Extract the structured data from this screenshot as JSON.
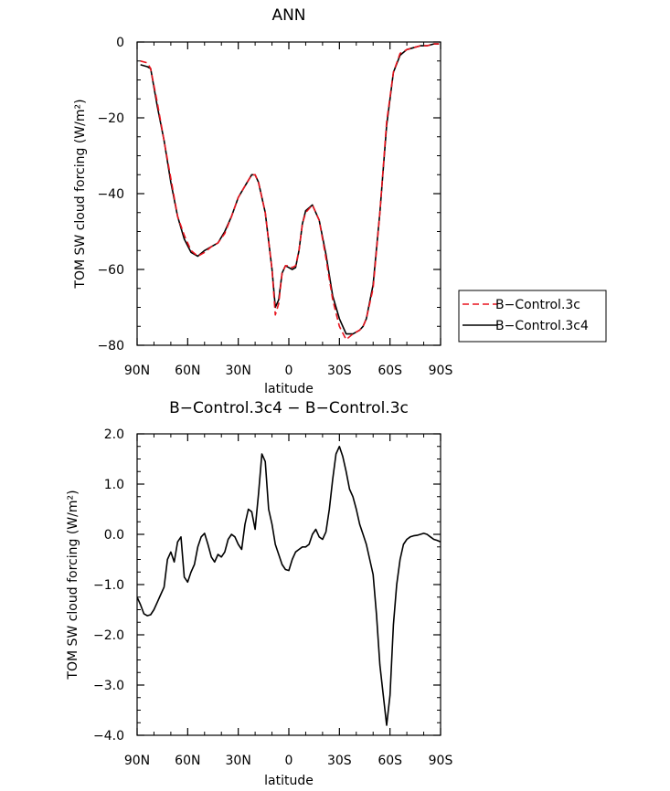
{
  "chart_data": [
    {
      "type": "line",
      "title": "ANN",
      "xlabel": "latitude",
      "ylabel": "TOM SW cloud forcing (W/m²)",
      "xlim": [
        90,
        -90
      ],
      "ylim": [
        -80,
        0
      ],
      "x_ticks": [
        90,
        60,
        30,
        0,
        -30,
        -60,
        -90
      ],
      "x_tick_labels": [
        "90N",
        "60N",
        "30N",
        "0",
        "30S",
        "60S",
        "90S"
      ],
      "y_ticks": [
        0,
        -20,
        -40,
        -60,
        -80
      ],
      "y_tick_labels": [
        "0",
        "−20",
        "−40",
        "−60",
        "−80"
      ],
      "legend_position": "right",
      "series": [
        {
          "name": "B−Control.3c",
          "color": "#e8141e",
          "dash": "dashed",
          "x": [
            88,
            84,
            82,
            78,
            74,
            70,
            66,
            62,
            58,
            54,
            50,
            46,
            42,
            38,
            34,
            30,
            26,
            22,
            20,
            18,
            14,
            10,
            8,
            6,
            4,
            2,
            0,
            -2,
            -4,
            -6,
            -8,
            -10,
            -14,
            -18,
            -22,
            -26,
            -30,
            -34,
            -38,
            -42,
            -44,
            -46,
            -50,
            -54,
            -58,
            -62,
            -66,
            -70,
            -74,
            -78,
            -82,
            -86,
            -89
          ],
          "y": [
            -5,
            -5.5,
            -7,
            -16,
            -26,
            -36,
            -46,
            -51,
            -55,
            -56.5,
            -55.5,
            -54,
            -53,
            -50.5,
            -46,
            -41,
            -38,
            -35,
            -35,
            -37,
            -45,
            -60,
            -72,
            -69,
            -61,
            -59,
            -59,
            -59.5,
            -59,
            -55,
            -48,
            -45,
            -43,
            -47,
            -57,
            -68,
            -75,
            -78.5,
            -77,
            -76,
            -75,
            -73,
            -65,
            -45,
            -21,
            -8,
            -3,
            -2,
            -1.5,
            -1,
            -1,
            -0.5,
            -0.5
          ]
        },
        {
          "name": "B−Control.3c4",
          "color": "#000000",
          "dash": "solid",
          "x": [
            88,
            84,
            82,
            78,
            74,
            70,
            66,
            62,
            58,
            54,
            50,
            46,
            42,
            38,
            34,
            30,
            26,
            22,
            20,
            18,
            14,
            10,
            8,
            6,
            4,
            2,
            0,
            -2,
            -4,
            -6,
            -8,
            -10,
            -14,
            -18,
            -22,
            -26,
            -30,
            -34,
            -38,
            -42,
            -44,
            -46,
            -50,
            -54,
            -58,
            -62,
            -66,
            -70,
            -74,
            -78,
            -82,
            -86,
            -89
          ],
          "y": [
            -6,
            -6.5,
            -7,
            -17,
            -26,
            -37,
            -46,
            -52,
            -55.5,
            -56.5,
            -55,
            -54,
            -53,
            -50,
            -46,
            -41,
            -38,
            -35,
            -35,
            -37,
            -45,
            -60,
            -70,
            -68,
            -61,
            -59,
            -59.5,
            -60,
            -59.5,
            -55,
            -48,
            -44.5,
            -43,
            -47,
            -56,
            -67,
            -73,
            -77,
            -77,
            -76,
            -75,
            -73,
            -64,
            -45,
            -22,
            -8,
            -3.5,
            -2,
            -1.5,
            -1,
            -1,
            -0.5,
            -0.5
          ]
        }
      ]
    },
    {
      "type": "line",
      "title": "B−Control.3c4 − B−Control.3c",
      "xlabel": "latitude",
      "ylabel": "TOM SW cloud forcing (W/m²)",
      "xlim": [
        90,
        -90
      ],
      "ylim": [
        -4.0,
        2.0
      ],
      "x_ticks": [
        90,
        60,
        30,
        0,
        -30,
        -60,
        -90
      ],
      "x_tick_labels": [
        "90N",
        "60N",
        "30N",
        "0",
        "30S",
        "60S",
        "90S"
      ],
      "y_ticks": [
        2.0,
        1.0,
        0.0,
        -1.0,
        -2.0,
        -3.0,
        -4.0
      ],
      "y_tick_labels": [
        "2.0",
        "1.0",
        "0.0",
        "−1.0",
        "−2.0",
        "−3.0",
        "−4.0"
      ],
      "series": [
        {
          "name": "",
          "color": "#000000",
          "dash": "solid",
          "x": [
            90,
            88,
            86,
            84,
            82,
            80,
            78,
            76,
            74,
            72,
            70,
            68,
            66,
            64,
            62,
            60,
            58,
            56,
            54,
            52,
            50,
            48,
            46,
            44,
            42,
            40,
            38,
            36,
            34,
            32,
            30,
            28,
            26,
            24,
            22,
            20,
            18,
            16,
            14,
            12,
            10,
            8,
            6,
            4,
            2,
            0,
            -2,
            -4,
            -6,
            -8,
            -10,
            -12,
            -14,
            -16,
            -18,
            -20,
            -22,
            -24,
            -26,
            -28,
            -30,
            -32,
            -34,
            -36,
            -38,
            -40,
            -42,
            -44,
            -46,
            -48,
            -50,
            -52,
            -54,
            -56,
            -58,
            -60,
            -62,
            -64,
            -66,
            -68,
            -70,
            -72,
            -74,
            -76,
            -78,
            -80,
            -82,
            -84,
            -86,
            -88,
            -90
          ],
          "y": [
            -1.25,
            -1.4,
            -1.58,
            -1.62,
            -1.6,
            -1.5,
            -1.35,
            -1.2,
            -1.05,
            -0.5,
            -0.35,
            -0.55,
            -0.15,
            -0.05,
            -0.85,
            -0.95,
            -0.75,
            -0.6,
            -0.25,
            -0.05,
            0.02,
            -0.2,
            -0.45,
            -0.55,
            -0.4,
            -0.45,
            -0.35,
            -0.1,
            0.0,
            -0.05,
            -0.2,
            -0.3,
            0.2,
            0.5,
            0.45,
            0.1,
            0.8,
            1.6,
            1.45,
            0.5,
            0.2,
            -0.2,
            -0.4,
            -0.6,
            -0.7,
            -0.72,
            -0.5,
            -0.35,
            -0.3,
            -0.25,
            -0.25,
            -0.2,
            0.0,
            0.1,
            -0.05,
            -0.1,
            0.05,
            0.5,
            1.1,
            1.6,
            1.75,
            1.55,
            1.25,
            0.9,
            0.75,
            0.5,
            0.2,
            0.0,
            -0.2,
            -0.5,
            -0.8,
            -1.6,
            -2.6,
            -3.2,
            -3.8,
            -3.2,
            -1.8,
            -1.0,
            -0.5,
            -0.2,
            -0.1,
            -0.05,
            -0.03,
            -0.02,
            0.0,
            0.02,
            0.0,
            -0.05,
            -0.1,
            -0.12,
            -0.15
          ]
        }
      ]
    }
  ]
}
